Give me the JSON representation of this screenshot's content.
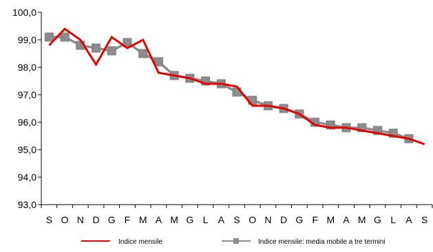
{
  "chart_data": {
    "type": "line",
    "title": "",
    "xlabel": "",
    "ylabel": "",
    "categories": [
      "S",
      "O",
      "N",
      "D",
      "G",
      "F",
      "M",
      "A",
      "M",
      "G",
      "L",
      "A",
      "S",
      "O",
      "N",
      "D",
      "G",
      "F",
      "M",
      "A",
      "M",
      "G",
      "L",
      "A",
      "S"
    ],
    "ylim": [
      93.0,
      100.0
    ],
    "yticks": [
      "93,0",
      "94,0",
      "95,0",
      "96,0",
      "97,0",
      "98,0",
      "99,0",
      "100,0"
    ],
    "grid": false,
    "legend_position": "bottom",
    "series": [
      {
        "name": "Indice mensile",
        "color": "#e60000",
        "marker": "none",
        "values": [
          98.8,
          99.4,
          99.0,
          98.1,
          99.1,
          98.7,
          99.0,
          97.8,
          97.7,
          97.6,
          97.4,
          97.4,
          97.3,
          96.6,
          96.6,
          96.5,
          96.3,
          95.9,
          95.8,
          95.8,
          95.7,
          95.6,
          95.5,
          95.4,
          95.2
        ]
      },
      {
        "name": "Indice mensile: media mobile a tre termini",
        "color": "#8c8c8c",
        "marker": "square",
        "values": [
          99.1,
          99.1,
          98.8,
          98.7,
          98.6,
          98.9,
          98.5,
          98.2,
          97.7,
          97.6,
          97.5,
          97.4,
          97.1,
          96.8,
          96.6,
          96.5,
          96.3,
          96.0,
          95.9,
          95.8,
          95.8,
          95.7,
          95.6,
          95.4,
          null
        ]
      }
    ]
  }
}
